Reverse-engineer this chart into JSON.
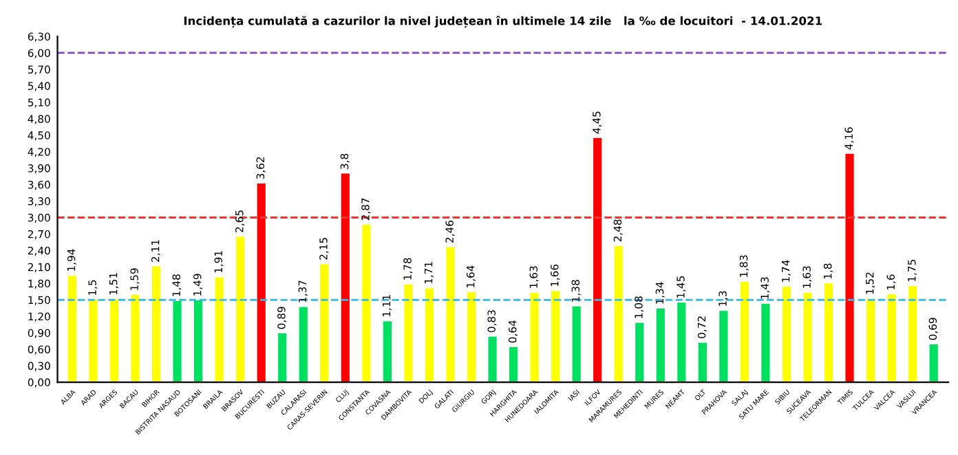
{
  "chart_data": {
    "type": "bar",
    "title": "Incidența cumulată a cazurilor la nivel județean în ultimele 14 zile   la ‰ de locuitori  - 14.01.2021",
    "categories": [
      "ALBA",
      "ARAD",
      "ARGES",
      "BACAU",
      "BIHOR",
      "BISTRITA NASAUD",
      "BOTOSANI",
      "BRAILA",
      "BRASOV",
      "BUCURESTI",
      "BUZAU",
      "CALARASI",
      "CARAS-SEVERIN",
      "CLUJ",
      "CONSTANTA",
      "COVASNA",
      "DAMBOVITA",
      "DOLJ",
      "GALATI",
      "GIURGIU",
      "GORJ",
      "HARGHITA",
      "HUNEDOARA",
      "IALOMITA",
      "IASI",
      "ILFOV",
      "MARAMURES",
      "MEHEDINTI",
      "MURES",
      "NEAMT",
      "OLT",
      "PRAHOVA",
      "SALAJ",
      "SATU MARE",
      "SIBIU",
      "SUCEAVA",
      "TELEORMAN",
      "TIMIS",
      "TULCEA",
      "VALCEA",
      "VASLUI",
      "VRANCEA"
    ],
    "values": [
      1.94,
      1.5,
      1.51,
      1.59,
      2.11,
      1.48,
      1.49,
      1.91,
      2.65,
      3.62,
      0.89,
      1.37,
      2.15,
      3.8,
      2.87,
      1.11,
      1.78,
      1.71,
      2.46,
      1.64,
      0.83,
      0.64,
      1.63,
      1.66,
      1.38,
      4.45,
      2.48,
      1.08,
      1.34,
      1.45,
      0.72,
      1.3,
      1.83,
      1.43,
      1.74,
      1.63,
      1.8,
      4.16,
      1.52,
      1.6,
      1.75,
      0.69
    ],
    "value_labels": [
      "1,94",
      "1,5",
      "1,51",
      "1,59",
      "2,11",
      "1,48",
      "1,49",
      "1,91",
      "2,65",
      "3,62",
      "0,89",
      "1,37",
      "2,15",
      "3,8",
      "2,87",
      "1,11",
      "1,78",
      "1,71",
      "2,46",
      "1,64",
      "0,83",
      "0,64",
      "1,63",
      "1,66",
      "1,38",
      "4,45",
      "2,48",
      "1,08",
      "1,34",
      "1,45",
      "0,72",
      "1,3",
      "1,83",
      "1,43",
      "1,74",
      "1,63",
      "1,8",
      "4,16",
      "1,52",
      "1,6",
      "1,75",
      "0,69"
    ],
    "colors": [
      "#ffff00",
      "#ffff00",
      "#ffff00",
      "#ffff00",
      "#ffff00",
      "#00e060",
      "#00e060",
      "#ffff00",
      "#ffff00",
      "#ff0000",
      "#00e060",
      "#00e060",
      "#ffff00",
      "#ff0000",
      "#ffff00",
      "#00e060",
      "#ffff00",
      "#ffff00",
      "#ffff00",
      "#ffff00",
      "#00e060",
      "#00e060",
      "#ffff00",
      "#ffff00",
      "#00e060",
      "#ff0000",
      "#ffff00",
      "#00e060",
      "#00e060",
      "#00e060",
      "#00e060",
      "#00e060",
      "#ffff00",
      "#00e060",
      "#ffff00",
      "#ffff00",
      "#ffff00",
      "#ff0000",
      "#ffff00",
      "#ffff00",
      "#ffff00",
      "#00e060"
    ],
    "ylim": [
      0,
      6.3
    ],
    "yticks": [
      {
        "value": 0,
        "label": "0,00"
      },
      {
        "value": 0.3,
        "label": "0,30"
      },
      {
        "value": 0.6,
        "label": "0,60"
      },
      {
        "value": 0.9,
        "label": "0,90"
      },
      {
        "value": 1.2,
        "label": "1,20"
      },
      {
        "value": 1.5,
        "label": "1,50"
      },
      {
        "value": 1.8,
        "label": "1,80"
      },
      {
        "value": 2.1,
        "label": "2,10"
      },
      {
        "value": 2.4,
        "label": "2,40"
      },
      {
        "value": 2.7,
        "label": "2,70"
      },
      {
        "value": 3.0,
        "label": "3,00"
      },
      {
        "value": 3.3,
        "label": "3,30"
      },
      {
        "value": 3.6,
        "label": "3,60"
      },
      {
        "value": 3.9,
        "label": "3,90"
      },
      {
        "value": 4.2,
        "label": "4,20"
      },
      {
        "value": 4.5,
        "label": "4,50"
      },
      {
        "value": 4.8,
        "label": "4,80"
      },
      {
        "value": 5.1,
        "label": "5,10"
      },
      {
        "value": 5.4,
        "label": "5,40"
      },
      {
        "value": 5.7,
        "label": "5,70"
      },
      {
        "value": 6.0,
        "label": "6,00"
      },
      {
        "value": 6.3,
        "label": "6,30"
      }
    ],
    "ref_lines": [
      {
        "axis": "y",
        "value": 1.5,
        "color": "#33bbee",
        "line_style": "dashed"
      },
      {
        "axis": "y",
        "value": 3.0,
        "color": "#ee3333",
        "line_style": "dashed"
      },
      {
        "axis": "y",
        "value": 6.0,
        "color": "#8844bb",
        "line_style": "dashed"
      }
    ],
    "grid": false,
    "legend": false
  }
}
